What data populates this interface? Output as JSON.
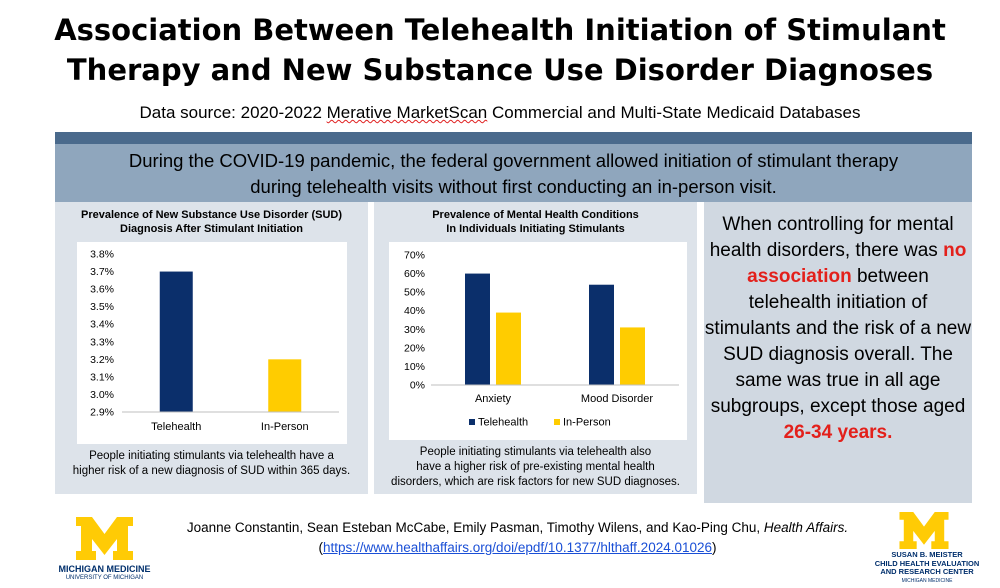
{
  "title": {
    "line1": "Association Between Telehealth Initiation of Stimulant",
    "line2": "Therapy and New Substance Use Disorder Diagnoses"
  },
  "subtitle": {
    "prefix": "Data source: 2020-2022 ",
    "flagged": "Merative MarketScan",
    "suffix": " Commercial and Multi-State Medicaid Databases"
  },
  "banner": {
    "line1": "During the COVID-19 pandemic, the federal government allowed initiation of stimulant therapy",
    "line2": "during telehealth visits without first conducting an in-person visit."
  },
  "colors": {
    "telehealth": "#0b2f6b",
    "in_person": "#ffcc00",
    "accent_red": "#e3201b",
    "umich_blue": "#002f6c",
    "umich_maize": "#ffcb05"
  },
  "chart_data": [
    {
      "type": "bar",
      "title_line1": "Prevalence of New Substance Use Disorder (SUD)",
      "title_line2": "Diagnosis After Stimulant Initiation",
      "categories": [
        "Telehealth",
        "In-Person"
      ],
      "values": [
        3.7,
        3.2
      ],
      "ylim": [
        2.9,
        3.8
      ],
      "yticks": [
        "3.8%",
        "3.7%",
        "3.6%",
        "3.5%",
        "3.4%",
        "3.3%",
        "3.2%",
        "3.1%",
        "3.0%",
        "2.9%"
      ],
      "caption_line1": "People initiating stimulants via telehealth have a",
      "caption_line2": "higher risk of a new diagnosis of SUD within 365 days."
    },
    {
      "type": "bar",
      "title_line1": "Prevalence of Mental Health Conditions",
      "title_line2": "In Individuals Initiating Stimulants",
      "categories": [
        "Anxiety",
        "Mood Disorder"
      ],
      "series": [
        {
          "name": "Telehealth",
          "values": [
            60,
            54
          ]
        },
        {
          "name": "In-Person",
          "values": [
            39,
            31
          ]
        }
      ],
      "ylim": [
        0,
        70
      ],
      "yticks": [
        "70%",
        "60%",
        "50%",
        "40%",
        "30%",
        "20%",
        "10%",
        "0%"
      ],
      "legend": [
        "Telehealth",
        "In-Person"
      ],
      "caption_line1": "People initiating stimulants via telehealth also",
      "caption_line2": "have a higher risk of pre-existing mental health",
      "caption_line3": "disorders, which are risk factors for new SUD diagnoses."
    }
  ],
  "finding": {
    "part1": "When controlling for mental health disorders, there was ",
    "highlight1": "no association",
    "part2": " between telehealth initiation of stimulants and the risk of a new SUD diagnosis overall. The same was true in all age subgroups, except those aged ",
    "highlight2": "26-34 years",
    "part3": "."
  },
  "citation": {
    "authors": "Joanne Constantin, Sean Esteban McCabe, Emily Pasman, Timothy Wilens, and Kao-Ping Chu, ",
    "journal": "Health Affairs.",
    "open_paren": "(",
    "url": "https://www.healthaffairs.org/doi/epdf/10.1377/hlthaff.2024.01026",
    "close_paren": ")"
  },
  "logos": {
    "left_name": "MICHIGAN MEDICINE",
    "left_sub": "UNIVERSITY OF MICHIGAN",
    "right_line1": "SUSAN B. MEISTER",
    "right_line2": "CHILD HEALTH EVALUATION",
    "right_line3": "AND RESEARCH CENTER",
    "right_sub": "MICHIGAN MEDICINE"
  }
}
